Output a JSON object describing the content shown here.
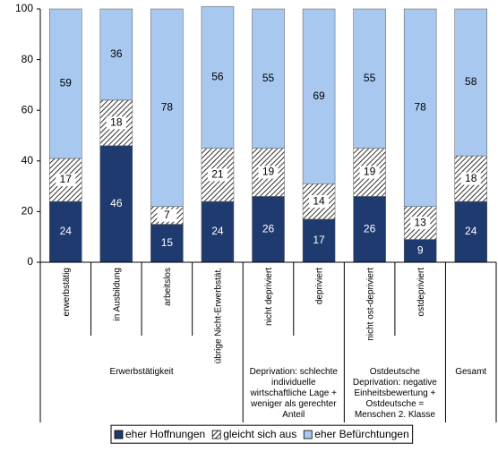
{
  "chart_data": {
    "type": "stacked-bar",
    "groups": [
      {
        "label": "Erwerbstätigkeit",
        "categories": [
          "erwerbstätig",
          "in Ausbildung",
          "arbeitslos",
          "übrige Nicht-Erwerbstät."
        ]
      },
      {
        "label": "Deprivation: schlechte individuelle wirtschaftliche Lage + weniger als gerechter Anteil",
        "categories": [
          "nicht depriviert",
          "depriviert"
        ]
      },
      {
        "label": "Ostdeutsche Deprivation: negative Einheitsbewertung + Ostdeutsche = Menschen 2. Klasse",
        "categories": [
          "nicht ost-depriviert",
          "ostdepriviert"
        ]
      },
      {
        "label": "Gesamt",
        "categories": [
          null
        ]
      }
    ],
    "series": [
      {
        "name": "eher Hoffnungen",
        "color": "#1f3a6e",
        "values": [
          24,
          46,
          15,
          24,
          26,
          17,
          26,
          9,
          24
        ]
      },
      {
        "name": "gleicht sich aus",
        "color": "#000000",
        "hatch": true,
        "values": [
          17,
          18,
          7,
          21,
          19,
          14,
          19,
          13,
          18
        ]
      },
      {
        "name": "eher Befürchtungen",
        "color": "#a9c8f0",
        "values": [
          59,
          36,
          78,
          56,
          55,
          69,
          55,
          78,
          58
        ]
      }
    ],
    "ylim": [
      0,
      100
    ],
    "yticks": [
      0,
      20,
      40,
      60,
      80,
      100
    ],
    "legend": "bottom"
  }
}
